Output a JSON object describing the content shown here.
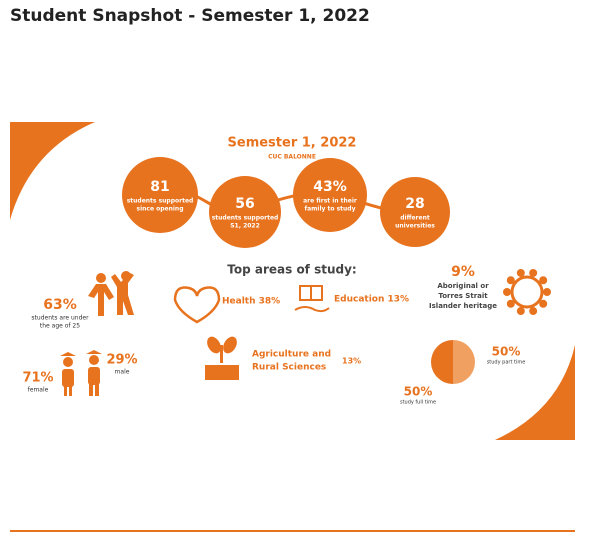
{
  "header": {
    "title": "Student Snapshot - Semester 1, 2022"
  },
  "infographic": {
    "heading": "Semester 1, 2022",
    "subheading": "CUC BALONNE",
    "stats": [
      {
        "value": "81",
        "lines": [
          "students supported",
          "since opening"
        ]
      },
      {
        "value": "56",
        "lines": [
          "students supported",
          "S1, 2022"
        ]
      },
      {
        "value": "43%",
        "lines": [
          "are first in their",
          "family to study"
        ]
      },
      {
        "value": "28",
        "lines": [
          "different",
          "universities"
        ]
      }
    ],
    "study_heading": "Top areas of study:",
    "areas": [
      {
        "label": "Health 38%"
      },
      {
        "label": "Education 13%"
      },
      {
        "lines": [
          "Agriculture and",
          "Rural Sciences"
        ],
        "value": "13%"
      }
    ],
    "age": {
      "value": "63%",
      "lines": [
        "students are under",
        "the age of 25"
      ]
    },
    "gender": [
      {
        "value": "71%",
        "label": "female"
      },
      {
        "value": "29%",
        "label": "male"
      }
    ],
    "heritage": {
      "value": "9%",
      "lines": [
        "Aboriginal or",
        "Torres Strait",
        "Islander heritage"
      ]
    },
    "mode": [
      {
        "value": "50%",
        "label": "study part time"
      },
      {
        "value": "50%",
        "label": "study full time"
      }
    ]
  }
}
